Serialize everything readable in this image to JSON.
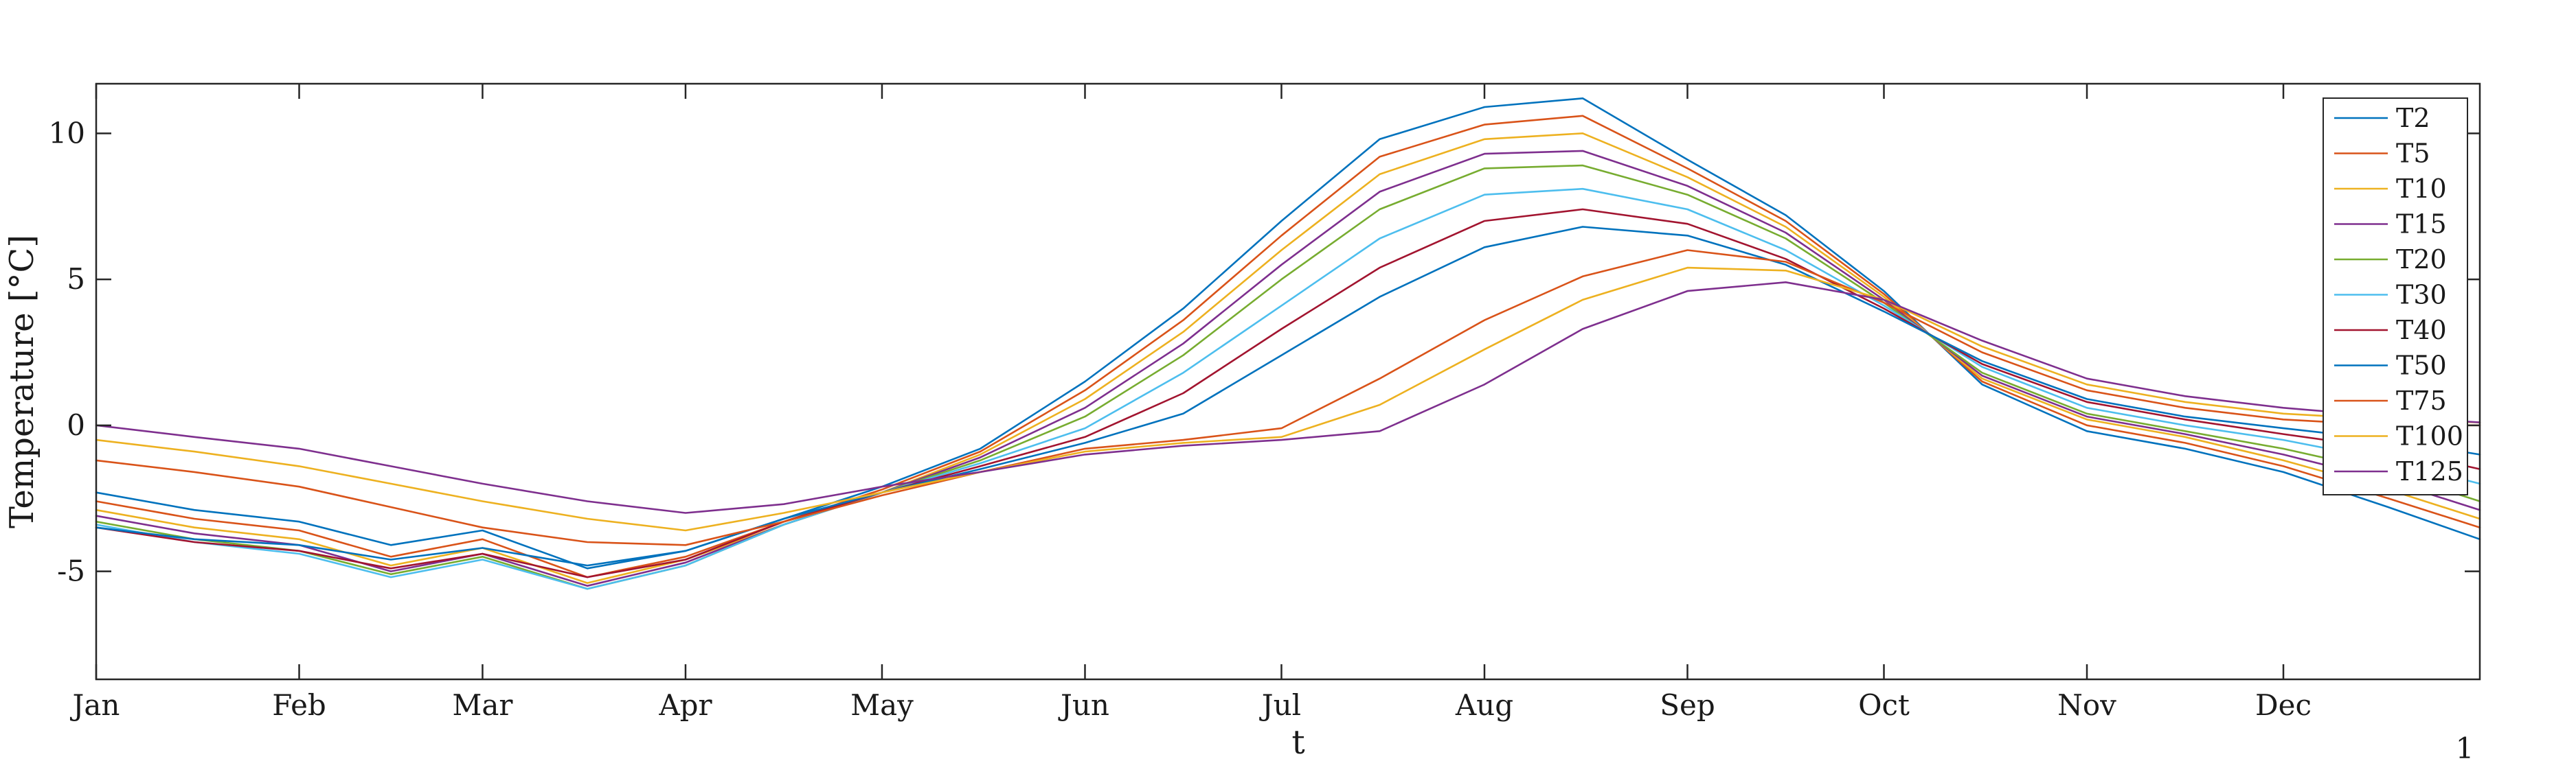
{
  "chart_data": {
    "type": "line",
    "title": "",
    "xlabel": "t",
    "ylabel": "Temperature [°C]",
    "x_tick_labels": [
      "Jan",
      "Feb",
      "Mar",
      "Apr",
      "May",
      "Jun",
      "Jul",
      "Aug",
      "Sep",
      "Oct",
      "Nov",
      "Dec"
    ],
    "y_ticks": [
      10,
      5,
      0,
      -5
    ],
    "y_tick_labels": [
      "10",
      "5",
      "0",
      "-5"
    ],
    "ylim": [
      -8.7,
      11.7
    ],
    "xlim": [
      "Jan 1",
      "Dec 31"
    ],
    "grid": false,
    "legend_position": "top-right",
    "x_unit": "day of year",
    "x": [
      0,
      15,
      31,
      45,
      59,
      75,
      90,
      105,
      120,
      135,
      151,
      166,
      181,
      196,
      212,
      227,
      243,
      258,
      273,
      288,
      304,
      319,
      334,
      350,
      364
    ],
    "series": [
      {
        "name": "T2",
        "color": "#0072BD",
        "values": [
          -2.3,
          -2.9,
          -3.3,
          -4.1,
          -3.6,
          -4.9,
          -4.3,
          -3.2,
          -2.1,
          -0.8,
          1.5,
          4.0,
          7.0,
          9.8,
          10.9,
          11.2,
          9.1,
          7.2,
          4.6,
          1.4,
          -0.2,
          -0.8,
          -1.6,
          -2.8,
          -3.9
        ]
      },
      {
        "name": "T5",
        "color": "#D95319",
        "values": [
          -2.6,
          -3.2,
          -3.6,
          -4.5,
          -3.9,
          -5.2,
          -4.5,
          -3.3,
          -2.2,
          -0.9,
          1.2,
          3.6,
          6.5,
          9.2,
          10.3,
          10.6,
          8.8,
          7.0,
          4.5,
          1.5,
          0.0,
          -0.6,
          -1.4,
          -2.5,
          -3.5
        ]
      },
      {
        "name": "T10",
        "color": "#EDB120",
        "values": [
          -2.9,
          -3.5,
          -3.9,
          -4.8,
          -4.2,
          -5.4,
          -4.6,
          -3.4,
          -2.3,
          -1.0,
          0.9,
          3.2,
          6.0,
          8.6,
          9.8,
          10.0,
          8.5,
          6.8,
          4.4,
          1.6,
          0.2,
          -0.4,
          -1.2,
          -2.2,
          -3.2
        ]
      },
      {
        "name": "T15",
        "color": "#7E2F8E",
        "values": [
          -3.1,
          -3.7,
          -4.1,
          -5.0,
          -4.4,
          -5.5,
          -4.7,
          -3.4,
          -2.3,
          -1.1,
          0.6,
          2.8,
          5.5,
          8.0,
          9.3,
          9.4,
          8.2,
          6.6,
          4.3,
          1.7,
          0.3,
          -0.3,
          -1.0,
          -1.9,
          -2.9
        ]
      },
      {
        "name": "T20",
        "color": "#77AC30",
        "values": [
          -3.3,
          -3.9,
          -4.3,
          -5.1,
          -4.5,
          -5.6,
          -4.8,
          -3.4,
          -2.3,
          -1.2,
          0.3,
          2.4,
          5.0,
          7.4,
          8.8,
          8.9,
          7.9,
          6.4,
          4.2,
          1.8,
          0.4,
          -0.2,
          -0.8,
          -1.6,
          -2.6
        ]
      },
      {
        "name": "T30",
        "color": "#4DBEEE",
        "values": [
          -3.4,
          -4.0,
          -4.4,
          -5.2,
          -4.6,
          -5.6,
          -4.8,
          -3.4,
          -2.3,
          -1.3,
          -0.1,
          1.8,
          4.1,
          6.4,
          7.9,
          8.1,
          7.4,
          6.0,
          4.1,
          2.0,
          0.6,
          0.0,
          -0.5,
          -1.2,
          -2.0
        ]
      },
      {
        "name": "T40",
        "color": "#A2142F",
        "values": [
          -3.5,
          -4.0,
          -4.3,
          -4.9,
          -4.4,
          -5.2,
          -4.6,
          -3.3,
          -2.3,
          -1.4,
          -0.4,
          1.1,
          3.3,
          5.4,
          7.0,
          7.4,
          6.9,
          5.7,
          4.0,
          2.1,
          0.8,
          0.2,
          -0.3,
          -0.8,
          -1.5
        ]
      },
      {
        "name": "T50",
        "color": "#0072BD",
        "values": [
          -3.5,
          -3.9,
          -4.1,
          -4.6,
          -4.2,
          -4.8,
          -4.3,
          -3.2,
          -2.3,
          -1.5,
          -0.6,
          0.4,
          2.4,
          4.4,
          6.1,
          6.8,
          6.5,
          5.5,
          3.9,
          2.2,
          0.9,
          0.3,
          -0.1,
          -0.5,
          -1.0
        ]
      },
      {
        "name": "T75",
        "color": "#D95319",
        "values": [
          -1.2,
          -1.6,
          -2.1,
          -2.8,
          -3.5,
          -4.0,
          -4.1,
          -3.3,
          -2.4,
          -1.6,
          -0.8,
          -0.5,
          -0.1,
          1.6,
          3.6,
          5.1,
          6.0,
          5.6,
          4.2,
          2.5,
          1.2,
          0.6,
          0.2,
          0.0,
          0.0
        ]
      },
      {
        "name": "T100",
        "color": "#EDB120",
        "values": [
          -0.5,
          -0.9,
          -1.4,
          -2.0,
          -2.6,
          -3.2,
          -3.6,
          -3.0,
          -2.3,
          -1.6,
          -0.9,
          -0.6,
          -0.4,
          0.7,
          2.6,
          4.3,
          5.4,
          5.3,
          4.3,
          2.7,
          1.4,
          0.8,
          0.4,
          0.2,
          0.1
        ]
      },
      {
        "name": "T125",
        "color": "#7E2F8E",
        "values": [
          0.0,
          -0.4,
          -0.8,
          -1.4,
          -2.0,
          -2.6,
          -3.0,
          -2.7,
          -2.1,
          -1.6,
          -1.0,
          -0.7,
          -0.5,
          -0.2,
          1.4,
          3.3,
          4.6,
          4.9,
          4.3,
          2.9,
          1.6,
          1.0,
          0.6,
          0.3,
          0.1
        ]
      }
    ]
  },
  "page_number": "1"
}
